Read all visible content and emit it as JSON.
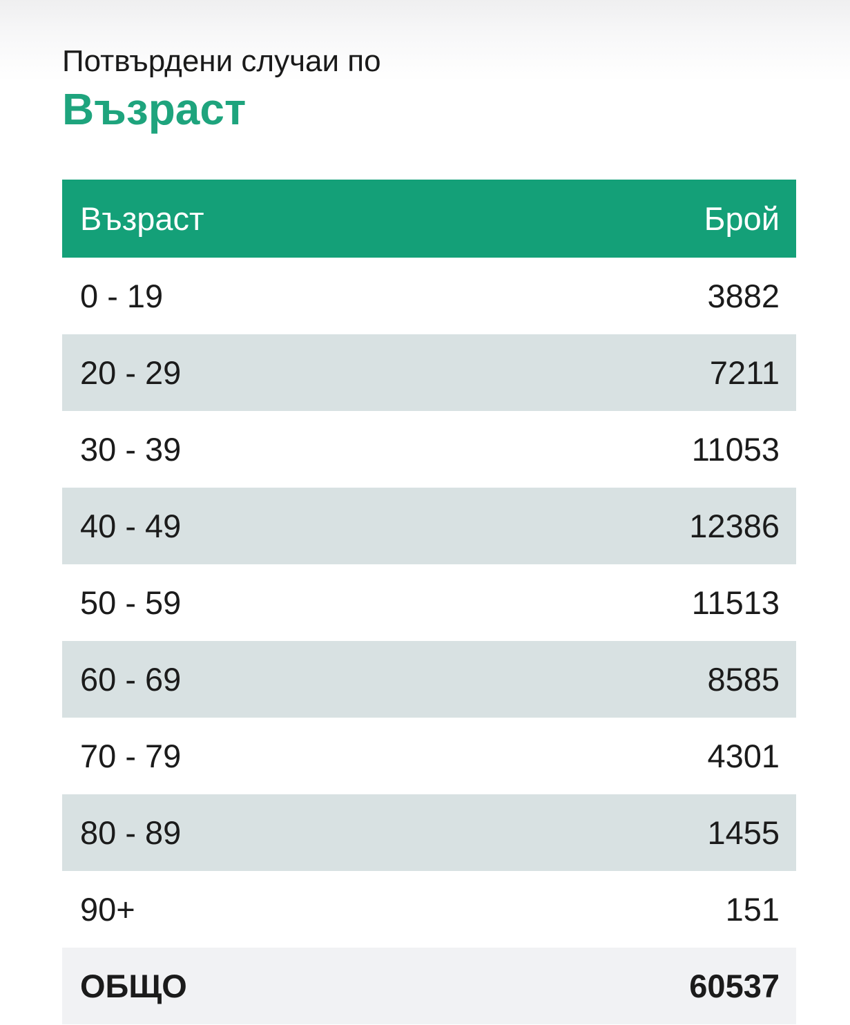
{
  "page": {
    "subtitle": "Потвърдени случаи по",
    "title": "Възраст"
  },
  "table": {
    "columns": [
      "Възраст",
      "Брой"
    ],
    "rows": [
      {
        "age": "0 - 19",
        "count": "3882"
      },
      {
        "age": "20 - 29",
        "count": "7211"
      },
      {
        "age": "30 - 39",
        "count": "11053"
      },
      {
        "age": "40 - 49",
        "count": "12386"
      },
      {
        "age": "50 - 59",
        "count": "11513"
      },
      {
        "age": "60 - 69",
        "count": "8585"
      },
      {
        "age": "70 - 79",
        "count": "4301"
      },
      {
        "age": "80 - 89",
        "count": "1455"
      },
      {
        "age": "90+",
        "count": "151"
      }
    ],
    "total": {
      "label": "ОБЩО",
      "count": "60537"
    }
  },
  "colors": {
    "accent_green": "#14A078",
    "heading_green": "#1EA47D",
    "stripe_gray": "#D8E1E2",
    "total_row_gray": "#F1F2F4",
    "header_text": "#FFFFFF",
    "body_text": "#1B1B1B"
  },
  "chart_data": {
    "type": "table",
    "title": "Потвърдени случаи по Възраст",
    "columns": [
      "Възраст",
      "Брой"
    ],
    "categories": [
      "0 - 19",
      "20 - 29",
      "30 - 39",
      "40 - 49",
      "50 - 59",
      "60 - 69",
      "70 - 79",
      "80 - 89",
      "90+"
    ],
    "values": [
      3882,
      7211,
      11053,
      12386,
      11513,
      8585,
      4301,
      1455,
      151
    ],
    "total_label": "ОБЩО",
    "total": 60537
  }
}
